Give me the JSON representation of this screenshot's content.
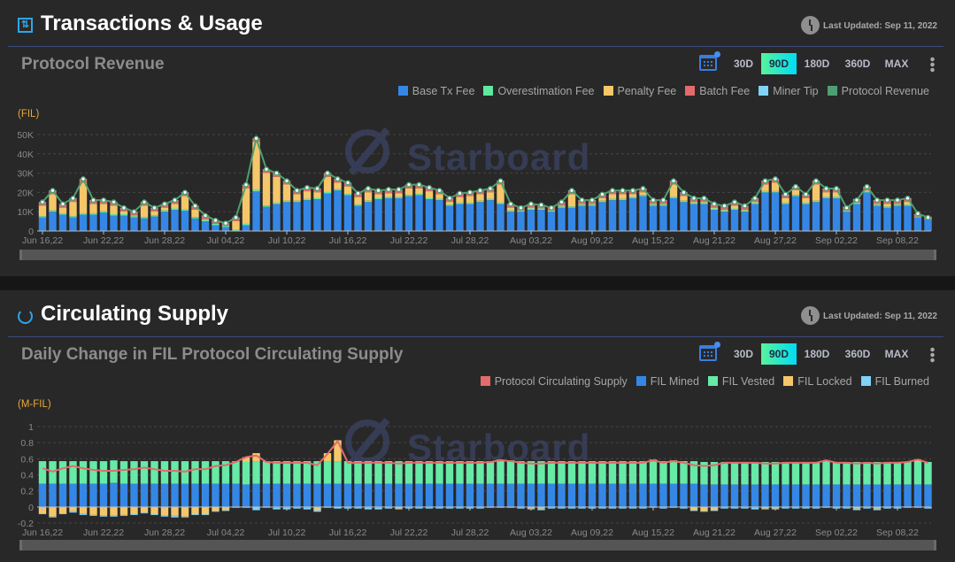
{
  "section1": {
    "title": "Transactions & Usage",
    "last_updated": "Last Updated: Sep 11, 2022",
    "subtitle": "Protocol Revenue",
    "ranges": [
      "30D",
      "90D",
      "180D",
      "360D",
      "MAX"
    ],
    "active_range": "90D",
    "unit": "(FIL)",
    "watermark": "Starboard"
  },
  "section2": {
    "title": "Circulating Supply",
    "last_updated": "Last Updated: Sep 11, 2022",
    "subtitle": "Daily Change in FIL Protocol Circulating Supply",
    "ranges": [
      "30D",
      "90D",
      "180D",
      "360D",
      "MAX"
    ],
    "active_range": "90D",
    "unit": "(M-FIL)",
    "watermark": "Starboard"
  },
  "chart_data": [
    {
      "type": "bar",
      "title": "Protocol Revenue",
      "ylabel": "(FIL)",
      "ylim": [
        0,
        50000
      ],
      "yticks": [
        "0",
        "10K",
        "20K",
        "30K",
        "40K",
        "50K"
      ],
      "ytick_values": [
        0,
        10000,
        20000,
        30000,
        40000,
        50000
      ],
      "start_date": "2022-06-16",
      "days": 88,
      "xticks": [
        "Jun 16,22",
        "Jun 22,22",
        "Jun 28,22",
        "Jul 04,22",
        "Jul 10,22",
        "Jul 16,22",
        "Jul 22,22",
        "Jul 28,22",
        "Aug 03,22",
        "Aug 09,22",
        "Aug 15,22",
        "Aug 21,22",
        "Aug 27,22",
        "Sep 02,22",
        "Sep 08,22"
      ],
      "legend": [
        {
          "name": "Base Tx Fee",
          "color": "#3587e6"
        },
        {
          "name": "Overestimation Fee",
          "color": "#5ee8a0"
        },
        {
          "name": "Penalty Fee",
          "color": "#f5c76a"
        },
        {
          "name": "Batch Fee",
          "color": "#e46b6b"
        },
        {
          "name": "Miner Tip",
          "color": "#7fd3f7"
        },
        {
          "name": "Protocol Revenue",
          "color": "#4f9e72"
        }
      ],
      "units_k": true,
      "series": {
        "Base Tx Fee": [
          7,
          10,
          8.5,
          7,
          8.5,
          8.5,
          9.5,
          8,
          8,
          7,
          6.5,
          7.5,
          10,
          11,
          10.5,
          6.5,
          5,
          3,
          2,
          0.2,
          3,
          20.5,
          12.5,
          14,
          15,
          15,
          16,
          16.5,
          19.5,
          21,
          18.5,
          13,
          15,
          16.5,
          17,
          17,
          18,
          18.5,
          16.5,
          16,
          13,
          14,
          14,
          15,
          16,
          14,
          10,
          10,
          11,
          11,
          10,
          12,
          12,
          13,
          13,
          15,
          16,
          16,
          17,
          18,
          13,
          13,
          17,
          15,
          14,
          14,
          11,
          10,
          11,
          10,
          14,
          20,
          20,
          14,
          18,
          14,
          15,
          17,
          17,
          10,
          14,
          20,
          13,
          12,
          13,
          13,
          7,
          6
        ],
        "Overestimation Fee": [
          0.7,
          0.7,
          0.7,
          0.7,
          0.7,
          0.7,
          0.7,
          0.7,
          0.7,
          0.7,
          0.7,
          0.7,
          0.7,
          0.7,
          0.7,
          0.7,
          0.7,
          0.7,
          0.7,
          0.7,
          0.7,
          0.7,
          0.7,
          0.7,
          0.7,
          0.7,
          0.7,
          0.7,
          0.7,
          0.7,
          0.7,
          0.7,
          0.7,
          0.7,
          0.7,
          0.7,
          0.7,
          0.7,
          0.7,
          0.7,
          0.7,
          0.7,
          0.7,
          0.7,
          0.7,
          0.7,
          0.7,
          0.7,
          0.7,
          0.7,
          0.7,
          0.7,
          0.7,
          0.7,
          0.7,
          0.7,
          0.7,
          0.7,
          0.7,
          0.7,
          0.7,
          0.7,
          0.7,
          0.7,
          0.7,
          0.7,
          0.7,
          0.7,
          0.7,
          0.7,
          0.7,
          0.7,
          0.7,
          0.7,
          0.7,
          0.7,
          0.7,
          0.7,
          0.7,
          0.7,
          0.7,
          0.7,
          0.7,
          0.7,
          0.7,
          0.7,
          0.5,
          0.5
        ],
        "Penalty Fee": [
          5.4,
          8.4,
          2.9,
          7.4,
          15.9,
          4.9,
          3.9,
          4.4,
          1.4,
          0.4,
          5.9,
          1.9,
          1.4,
          2.4,
          6.9,
          3.9,
          0.4,
          0,
          0,
          4.2,
          18.4,
          24.9,
          16.9,
          13.4,
          8.4,
          3.4,
          3.9,
          2.9,
          7.9,
          3.4,
          3.9,
          3.9,
          4.4,
          1.9,
          1.9,
          1.9,
          3.4,
          2.9,
          3.4,
          2.4,
          1.4,
          2.9,
          3.4,
          3.4,
          3.4,
          9.4,
          1.4,
          0,
          0.4,
          0,
          0,
          0.4,
          6.4,
          0.4,
          0.4,
          1.4,
          2.4,
          2.4,
          1.4,
          1.4,
          0.4,
          0.4,
          6.4,
          2.4,
          0.4,
          0.4,
          0.4,
          0.4,
          1.4,
          0.4,
          0.4,
          3.4,
          4.4,
          2.4,
          2.4,
          2.4,
          8.4,
          2.4,
          2.4,
          0,
          0,
          0.4,
          0.4,
          1.4,
          0.4,
          1.4,
          0,
          0
        ],
        "Batch Fee": [
          1.8,
          1.8,
          1.8,
          1.8,
          1.8,
          1.8,
          1.8,
          1.8,
          1.8,
          1.8,
          1.8,
          1.8,
          1.8,
          1.8,
          1.8,
          1.8,
          1.8,
          1.8,
          1.2,
          1.8,
          1.8,
          1.8,
          1.8,
          1.8,
          1.8,
          1.8,
          1.8,
          1.8,
          1.8,
          1.8,
          1.8,
          1.8,
          1.8,
          1.8,
          1.8,
          1.8,
          1.8,
          1.8,
          1.8,
          1.8,
          1.8,
          1.8,
          1.8,
          1.8,
          1.8,
          1.8,
          1.8,
          1.8,
          1.8,
          1.8,
          1.8,
          1.8,
          1.8,
          1.8,
          1.8,
          1.8,
          1.8,
          1.8,
          1.8,
          1.8,
          1.8,
          1.8,
          1.8,
          1.8,
          1.8,
          1.8,
          1.8,
          1.8,
          1.8,
          1.8,
          1.8,
          1.8,
          1.8,
          1.8,
          1.8,
          1.8,
          1.8,
          1.8,
          1.8,
          1.8,
          1.8,
          1.8,
          1.8,
          1.8,
          1.8,
          1.8,
          1.2,
          0.8
        ],
        "Miner Tip": [
          0.1,
          0.1,
          0.1,
          0.1,
          0.1,
          0.1,
          0.1,
          0.1,
          0.1,
          0.1,
          0.1,
          0.1,
          0.1,
          0.1,
          0.1,
          0.1,
          0.1,
          0.1,
          0.1,
          0.1,
          0.1,
          0.1,
          0.1,
          0.1,
          0.1,
          0.1,
          0.1,
          0.1,
          0.1,
          0.1,
          0.1,
          0.1,
          0.1,
          0.1,
          0.1,
          0.1,
          0.1,
          0.1,
          0.1,
          0.1,
          0.1,
          0.1,
          0.1,
          0.1,
          0.1,
          0.1,
          0.1,
          0.1,
          0.1,
          0.1,
          0.1,
          0.1,
          0.1,
          0.1,
          0.1,
          0.1,
          0.1,
          0.1,
          0.1,
          0.1,
          0.1,
          0.1,
          0.1,
          0.1,
          0.1,
          0.1,
          0.1,
          0.1,
          0.1,
          0.1,
          0.1,
          0.1,
          0.1,
          0.1,
          0.1,
          0.1,
          0.1,
          0.1,
          0.1,
          0.1,
          0.1,
          0.1,
          0.1,
          0.1,
          0.1,
          0.1,
          0.1,
          0.1
        ]
      },
      "line": {
        "name": "Protocol Revenue",
        "values": [
          15,
          21,
          14,
          17,
          27,
          16,
          16,
          15,
          12,
          10,
          15,
          12,
          14,
          16,
          20,
          13,
          8,
          5.5,
          4,
          7,
          24,
          48,
          32,
          30,
          26,
          21,
          22.5,
          22,
          30,
          27,
          25,
          19.5,
          22,
          21,
          21.5,
          21.5,
          24,
          24,
          22.5,
          21,
          17,
          19.5,
          20,
          21,
          22,
          26,
          14,
          12,
          14,
          13.5,
          12,
          15,
          21,
          16,
          16,
          19,
          21,
          21,
          21,
          22,
          16,
          16,
          26,
          20,
          17,
          17,
          14,
          13,
          15,
          13,
          17,
          26,
          27,
          19,
          23,
          19,
          26,
          22,
          22,
          12,
          16,
          23,
          16,
          16,
          16,
          17,
          9,
          7
        ]
      }
    },
    {
      "type": "bar",
      "title": "Daily Change in FIL Protocol Circulating Supply",
      "ylabel": "(M-FIL)",
      "ylim": [
        -0.2,
        1
      ],
      "yticks": [
        "-0.2",
        "0",
        "0.2",
        "0.4",
        "0.6",
        "0.8",
        "1"
      ],
      "ytick_values": [
        -0.2,
        0,
        0.2,
        0.4,
        0.6,
        0.8,
        1
      ],
      "start_date": "2022-06-16",
      "days": 88,
      "xticks": [
        "Jun 16,22",
        "Jun 22,22",
        "Jun 28,22",
        "Jul 04,22",
        "Jul 10,22",
        "Jul 16,22",
        "Jul 22,22",
        "Jul 28,22",
        "Aug 03,22",
        "Aug 09,22",
        "Aug 15,22",
        "Aug 21,22",
        "Aug 27,22",
        "Sep 02,22",
        "Sep 08,22"
      ],
      "legend": [
        {
          "name": "Protocol Circulating Supply",
          "color": "#e46b6b"
        },
        {
          "name": "FIL Mined",
          "color": "#3587e6"
        },
        {
          "name": "FIL Vested",
          "color": "#66eaa6"
        },
        {
          "name": "FIL Locked",
          "color": "#f5c76a"
        },
        {
          "name": "FIL Burned",
          "color": "#7fd3f7"
        }
      ],
      "series": {
        "FIL Mined": [
          0.29,
          0.29,
          0.29,
          0.29,
          0.29,
          0.29,
          0.29,
          0.3,
          0.29,
          0.29,
          0.29,
          0.29,
          0.29,
          0.29,
          0.29,
          0.29,
          0.29,
          0.29,
          0.29,
          0.29,
          0.28,
          0.29,
          0.29,
          0.29,
          0.29,
          0.29,
          0.29,
          0.29,
          0.29,
          0.29,
          0.29,
          0.29,
          0.29,
          0.29,
          0.29,
          0.29,
          0.29,
          0.29,
          0.29,
          0.29,
          0.29,
          0.29,
          0.29,
          0.29,
          0.29,
          0.29,
          0.29,
          0.29,
          0.29,
          0.29,
          0.29,
          0.29,
          0.29,
          0.29,
          0.29,
          0.29,
          0.29,
          0.29,
          0.29,
          0.29,
          0.29,
          0.29,
          0.29,
          0.29,
          0.29,
          0.28,
          0.28,
          0.28,
          0.28,
          0.28,
          0.28,
          0.28,
          0.28,
          0.28,
          0.28,
          0.28,
          0.28,
          0.28,
          0.28,
          0.28,
          0.28,
          0.28,
          0.28,
          0.28,
          0.28,
          0.28,
          0.28,
          0.28
        ],
        "FIL Vested": [
          0.28,
          0.28,
          0.28,
          0.28,
          0.28,
          0.28,
          0.28,
          0.28,
          0.28,
          0.28,
          0.28,
          0.28,
          0.28,
          0.28,
          0.28,
          0.28,
          0.28,
          0.28,
          0.28,
          0.28,
          0.28,
          0.28,
          0.28,
          0.28,
          0.28,
          0.28,
          0.28,
          0.28,
          0.28,
          0.28,
          0.28,
          0.28,
          0.28,
          0.28,
          0.28,
          0.28,
          0.28,
          0.28,
          0.28,
          0.28,
          0.28,
          0.28,
          0.28,
          0.28,
          0.28,
          0.28,
          0.28,
          0.28,
          0.28,
          0.28,
          0.28,
          0.28,
          0.28,
          0.28,
          0.28,
          0.28,
          0.28,
          0.28,
          0.28,
          0.28,
          0.28,
          0.28,
          0.28,
          0.28,
          0.28,
          0.28,
          0.28,
          0.28,
          0.28,
          0.28,
          0.28,
          0.28,
          0.28,
          0.28,
          0.28,
          0.28,
          0.28,
          0.28,
          0.28,
          0.28,
          0.28,
          0.28,
          0.28,
          0.28,
          0.28,
          0.28,
          0.28,
          0.28
        ],
        "FIL Locked": [
          -0.08,
          -0.12,
          -0.08,
          -0.05,
          -0.08,
          -0.1,
          -0.11,
          -0.11,
          -0.1,
          -0.09,
          -0.07,
          -0.09,
          -0.11,
          -0.11,
          -0.12,
          -0.09,
          -0.09,
          -0.05,
          -0.04,
          0,
          0.06,
          0.1,
          0,
          -0.01,
          -0.01,
          -0.01,
          -0.01,
          -0.04,
          0.1,
          0.26,
          -0.01,
          -0.01,
          -0.01,
          -0.01,
          -0.01,
          -0.02,
          -0.01,
          -0.01,
          -0.01,
          -0.01,
          -0.01,
          -0.01,
          -0.01,
          -0.01,
          0,
          0.02,
          0.01,
          -0.01,
          -0.02,
          -0.02,
          -0.01,
          -0.01,
          -0.01,
          -0.01,
          -0.01,
          -0.01,
          -0.01,
          -0.01,
          -0.01,
          -0.01,
          0.02,
          -0.01,
          0.01,
          -0.01,
          -0.04,
          -0.05,
          -0.04,
          -0.01,
          -0.01,
          -0.01,
          -0.01,
          -0.02,
          -0.02,
          -0.01,
          -0.01,
          -0.01,
          -0.01,
          0.02,
          -0.01,
          -0.01,
          -0.02,
          -0.01,
          -0.02,
          -0.01,
          -0.01,
          0,
          0.03,
          -0.01
        ],
        "FIL Burned": [
          -0.01,
          -0.01,
          -0.01,
          -0.02,
          -0.02,
          -0.01,
          -0.01,
          -0.01,
          -0.01,
          -0.01,
          -0.01,
          -0.01,
          -0.01,
          -0.02,
          -0.01,
          -0.01,
          -0.01,
          -0.01,
          -0.01,
          -0.01,
          -0.01,
          -0.04,
          -0.01,
          -0.02,
          -0.02,
          -0.01,
          -0.02,
          -0.02,
          -0.01,
          -0.02,
          -0.01,
          -0.01,
          -0.02,
          -0.02,
          -0.01,
          -0.01,
          -0.01,
          -0.01,
          -0.01,
          -0.01,
          -0.01,
          -0.01,
          -0.01,
          -0.01,
          -0.01,
          -0.01,
          -0.01,
          -0.01,
          -0.01,
          -0.02,
          -0.01,
          -0.01,
          -0.01,
          -0.01,
          -0.01,
          -0.01,
          -0.01,
          -0.01,
          -0.01,
          -0.01,
          -0.01,
          -0.01,
          -0.01,
          -0.01,
          -0.01,
          -0.01,
          -0.01,
          -0.01,
          -0.01,
          -0.01,
          -0.02,
          -0.01,
          -0.01,
          -0.01,
          -0.01,
          -0.01,
          -0.01,
          -0.01,
          -0.01,
          -0.01,
          -0.02,
          -0.01,
          -0.02,
          -0.01,
          -0.01,
          -0.01,
          -0.01,
          -0.01
        ]
      },
      "line": {
        "name": "Protocol Circulating Supply",
        "values": [
          0.48,
          0.44,
          0.48,
          0.51,
          0.48,
          0.46,
          0.45,
          0.45,
          0.46,
          0.47,
          0.49,
          0.47,
          0.45,
          0.45,
          0.44,
          0.47,
          0.47,
          0.51,
          0.52,
          0.56,
          0.62,
          0.64,
          0.56,
          0.55,
          0.55,
          0.55,
          0.55,
          0.52,
          0.66,
          0.82,
          0.55,
          0.55,
          0.55,
          0.55,
          0.55,
          0.54,
          0.55,
          0.55,
          0.55,
          0.55,
          0.55,
          0.55,
          0.55,
          0.55,
          0.56,
          0.58,
          0.57,
          0.55,
          0.54,
          0.54,
          0.55,
          0.55,
          0.55,
          0.55,
          0.55,
          0.55,
          0.55,
          0.55,
          0.55,
          0.55,
          0.58,
          0.55,
          0.57,
          0.55,
          0.52,
          0.51,
          0.52,
          0.55,
          0.55,
          0.55,
          0.55,
          0.54,
          0.54,
          0.55,
          0.55,
          0.55,
          0.55,
          0.58,
          0.55,
          0.55,
          0.54,
          0.55,
          0.54,
          0.55,
          0.55,
          0.56,
          0.59,
          0.55
        ]
      }
    }
  ]
}
